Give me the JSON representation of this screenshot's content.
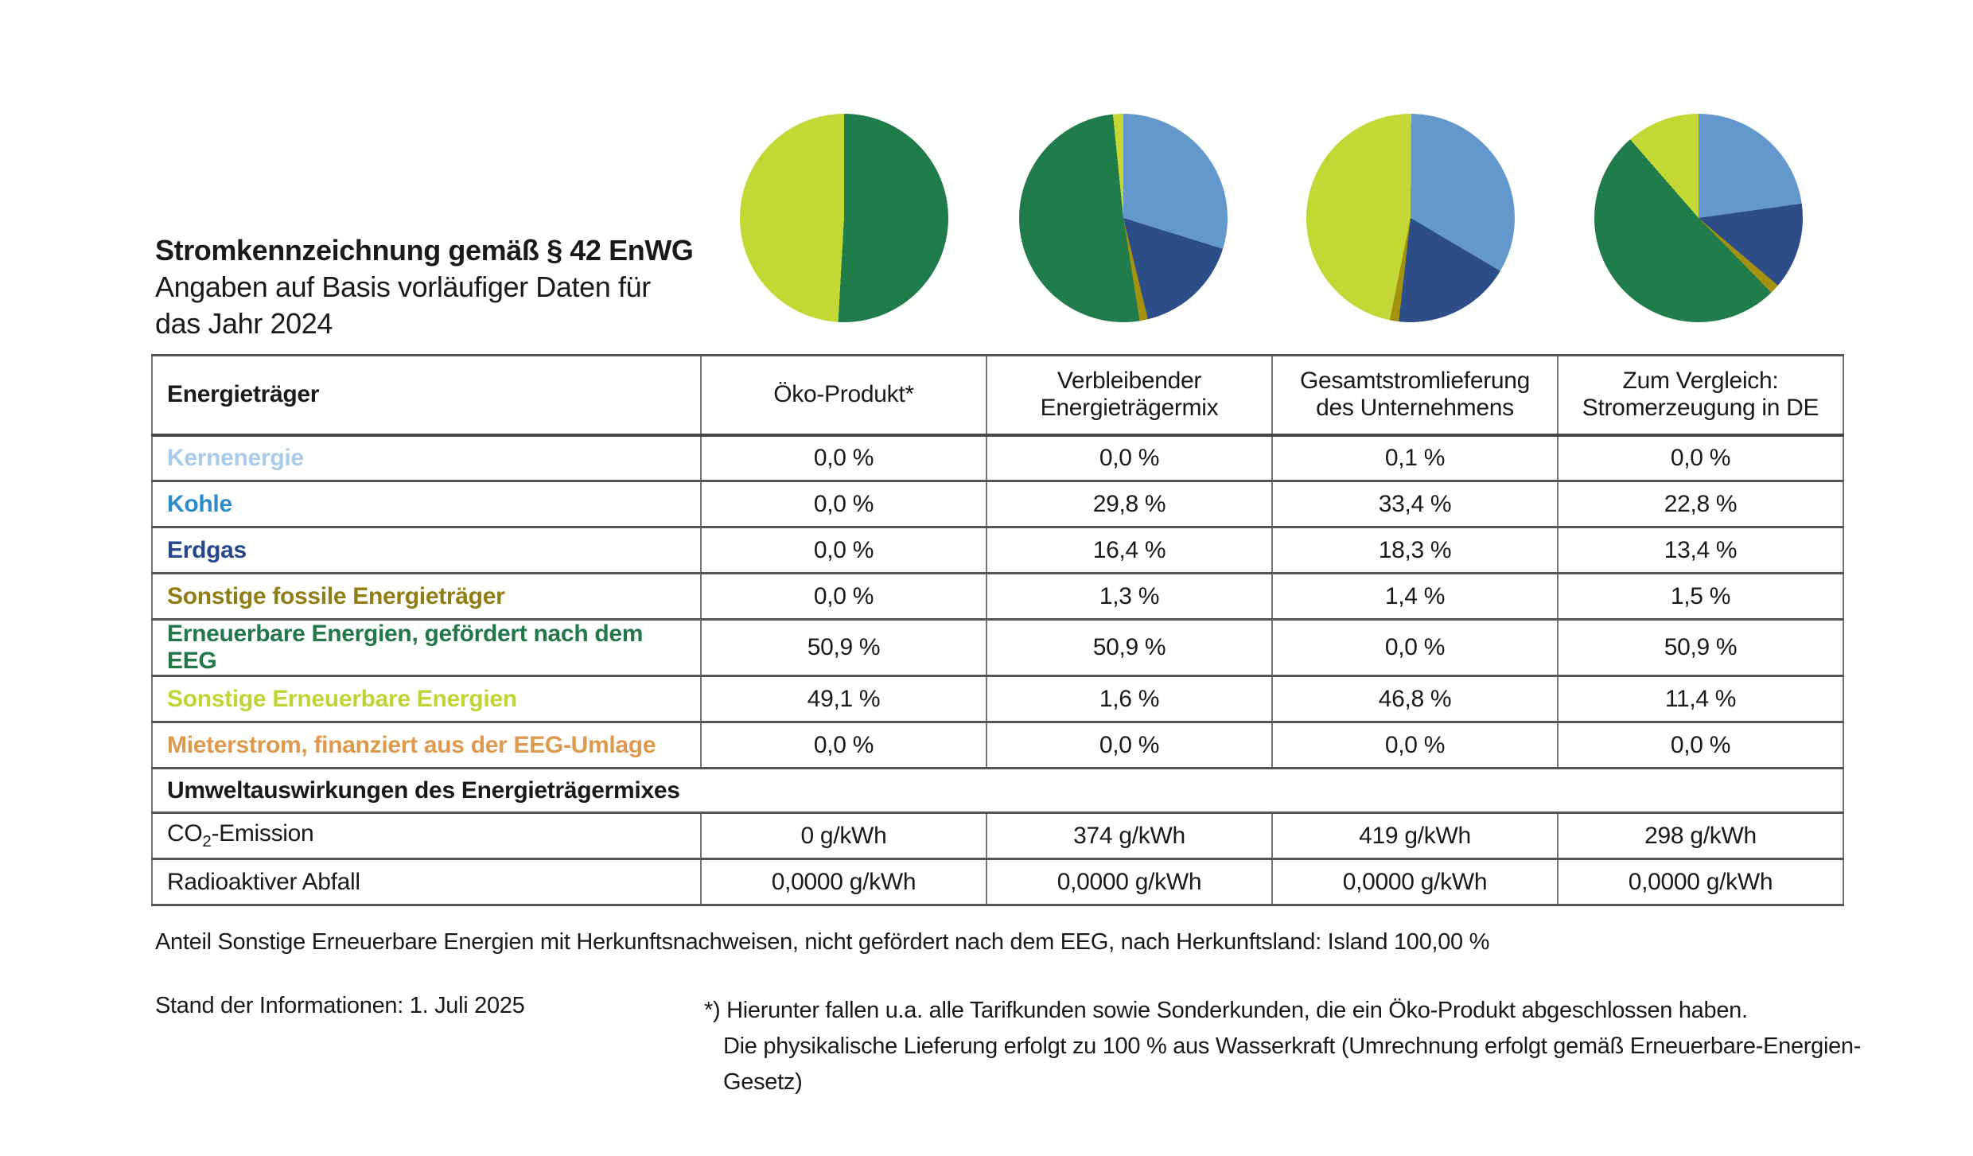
{
  "header": {
    "title": "Stromkennzeichnung gemäß § 42 EnWG",
    "subtitle_line1": "Angaben auf Basis vorläufiger Daten für",
    "subtitle_line2": "das Jahr 2024"
  },
  "table": {
    "col_headers": {
      "label": "Energieträger",
      "col1": "Öko-Produkt*",
      "col2": "Verbleibender\nEnergieträgermix",
      "col3": "Gesamtstromlieferung\ndes Unternehmens",
      "col4": "Zum Vergleich:\nStromerzeugung in DE"
    },
    "rows": [
      {
        "label": "Kernenergie",
        "color": "#a9cae8",
        "values": [
          "0,0 %",
          "0,0 %",
          "0,1 %",
          "0,0 %"
        ]
      },
      {
        "label": "Kohle",
        "color": "#2e8bc9",
        "values": [
          "0,0 %",
          "29,8 %",
          "33,4 %",
          "22,8 %"
        ]
      },
      {
        "label": "Erdgas",
        "color": "#27468b",
        "values": [
          "0,0 %",
          "16,4 %",
          "18,3 %",
          "13,4 %"
        ]
      },
      {
        "label": "Sonstige fossile Energieträger",
        "color": "#8e7e14",
        "values": [
          "0,0 %",
          "1,3 %",
          "1,4 %",
          "1,5 %"
        ]
      },
      {
        "label": "Erneuerbare Energien, gefördert nach dem EEG",
        "color": "#23784a",
        "values": [
          "50,9 %",
          "50,9 %",
          "0,0 %",
          "50,9 %"
        ]
      },
      {
        "label": "Sonstige Erneuerbare Energien",
        "color": "#c0d433",
        "values": [
          "49,1 %",
          "1,6 %",
          "46,8 %",
          "11,4 %"
        ]
      },
      {
        "label": "Mieterstrom, finanziert aus der EEG-Umlage",
        "color": "#dd9a4e",
        "values": [
          "0,0 %",
          "0,0 %",
          "0,0 %",
          "0,0 %"
        ]
      }
    ],
    "env": {
      "title": "Umweltauswirkungen des Energieträgermixes",
      "rows": [
        {
          "label_pre": "CO",
          "label_sub": "2",
          "label_post": "-Emission",
          "values": [
            "0 g/kWh",
            "374 g/kWh",
            "419 g/kWh",
            "298 g/kWh"
          ]
        },
        {
          "label": "Radioaktiver Abfall",
          "values": [
            "0,0000 g/kWh",
            "0,0000 g/kWh",
            "0,0000 g/kWh",
            "0,0000 g/kWh"
          ]
        }
      ]
    }
  },
  "notes": {
    "origin": "Anteil Sonstige Erneuerbare Energien mit Herkunftsnachweisen, nicht gefördert nach dem EEG, nach Herkunftsland: Island 100,00 %",
    "stand": "Stand der Informationen: 1. Juli 2025",
    "footnote_line1": "*) Hierunter fallen u.a. alle Tarifkunden sowie Sonderkunden, die ein Öko-Produkt abgeschlossen haben.",
    "footnote_line2": "Die physikalische Lieferung erfolgt zu 100 % aus Wasserkraft (Umrechnung erfolgt gemäß Erneuerbare-Energien-Gesetz)"
  },
  "chart_data": {
    "type": "pie",
    "title": "Stromkennzeichnung gemäß § 42 EnWG – Angaben auf Basis vorläufiger Daten für das Jahr 2024",
    "categories": [
      "Kernenergie",
      "Kohle",
      "Erdgas",
      "Sonstige fossile Energieträger",
      "Erneuerbare Energien, gefördert nach dem EEG",
      "Sonstige Erneuerbare Energien",
      "Mieterstrom, finanziert aus der EEG-Umlage"
    ],
    "colors": [
      "#a9cae8",
      "#6497cb",
      "#2c4d87",
      "#a39110",
      "#217c4b",
      "#c3d735",
      "#dd9a4e"
    ],
    "unit": "%",
    "start_angle_deg": 0,
    "direction": "clockwise",
    "legend_position": "none",
    "series": [
      {
        "name": "Öko-Produkt*",
        "values": [
          0.0,
          0.0,
          0.0,
          0.0,
          50.9,
          49.1,
          0.0
        ]
      },
      {
        "name": "Verbleibender Energieträgermix",
        "values": [
          0.0,
          29.8,
          16.4,
          1.3,
          50.9,
          1.6,
          0.0
        ]
      },
      {
        "name": "Gesamtstromlieferung des Unternehmens",
        "values": [
          0.1,
          33.4,
          18.3,
          1.4,
          0.0,
          46.8,
          0.0
        ]
      },
      {
        "name": "Zum Vergleich: Stromerzeugung in DE",
        "values": [
          0.0,
          22.8,
          13.4,
          1.5,
          50.9,
          11.4,
          0.0
        ]
      }
    ],
    "env_table": {
      "co2_emission_g_per_kwh": [
        0,
        374,
        419,
        298
      ],
      "radioactive_waste_g_per_kwh": [
        0.0,
        0.0,
        0.0,
        0.0
      ]
    }
  }
}
